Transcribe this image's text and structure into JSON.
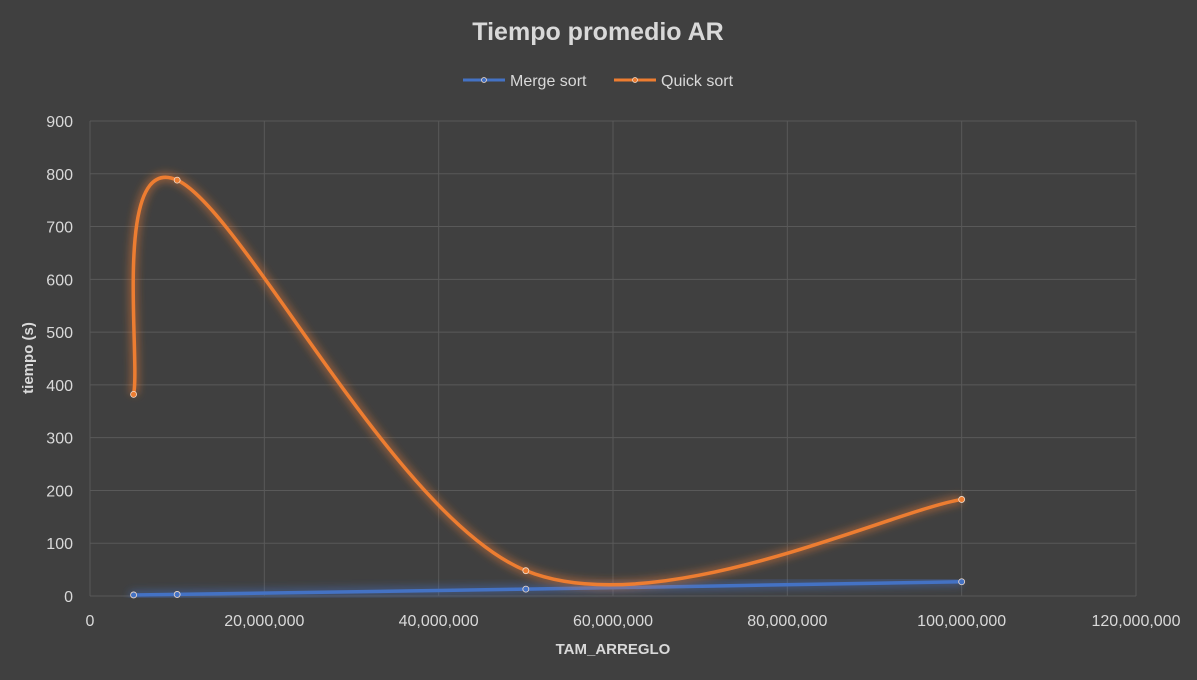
{
  "chart_data": {
    "type": "scatter",
    "title": "Tiempo promedio AR",
    "xlabel": "TAM_ARREGLO",
    "ylabel": "tiempo (s)",
    "xlim": [
      0,
      120000000
    ],
    "ylim": [
      0,
      900
    ],
    "x_ticks": [
      0,
      20000000,
      40000000,
      60000000,
      80000000,
      100000000,
      120000000
    ],
    "x_tick_labels": [
      "0",
      "20,000,000",
      "40,000,000",
      "60,000,000",
      "80,000,000",
      "100,000,000",
      "120,000,000"
    ],
    "y_ticks": [
      0,
      100,
      200,
      300,
      400,
      500,
      600,
      700,
      800,
      900
    ],
    "y_tick_labels": [
      "0",
      "100",
      "200",
      "300",
      "400",
      "500",
      "600",
      "700",
      "800",
      "900"
    ],
    "grid": true,
    "smooth_lines": true,
    "legend_position": "top",
    "series": [
      {
        "name": "Merge sort",
        "color": "#4472c4",
        "points": [
          {
            "x": 5000000,
            "y": 2
          },
          {
            "x": 10000000,
            "y": 3
          },
          {
            "x": 50000000,
            "y": 13
          },
          {
            "x": 100000000,
            "y": 27
          }
        ]
      },
      {
        "name": "Quick sort",
        "color": "#ed7d31",
        "points": [
          {
            "x": 5000000,
            "y": 382
          },
          {
            "x": 10000000,
            "y": 788
          },
          {
            "x": 50000000,
            "y": 48
          },
          {
            "x": 100000000,
            "y": 183
          }
        ]
      }
    ]
  }
}
